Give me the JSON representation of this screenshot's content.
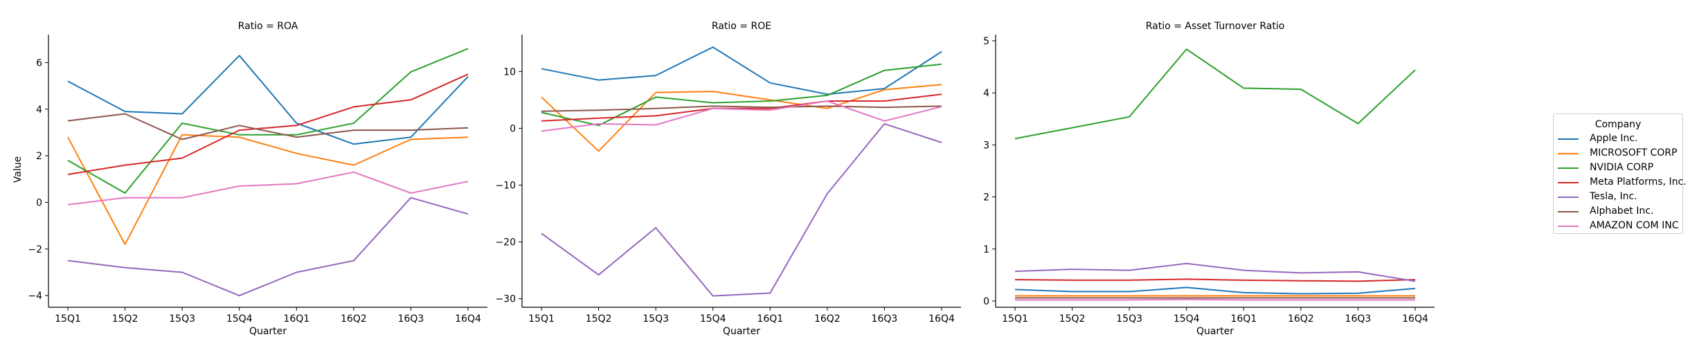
{
  "chart_data": [
    {
      "type": "line",
      "title": "Ratio = ROA",
      "xlabel": "Quarter",
      "ylabel": "Value",
      "categories": [
        "15Q1",
        "15Q2",
        "15Q3",
        "15Q4",
        "16Q1",
        "16Q2",
        "16Q3",
        "16Q4"
      ],
      "ylim": [
        -4.5,
        7.2
      ],
      "yticks": [
        -4,
        -2,
        0,
        2,
        4,
        6
      ],
      "ytick_labels": [
        "−4",
        "−2",
        "0",
        "2",
        "4",
        "6"
      ],
      "series": [
        {
          "name": "Apple Inc.",
          "values": [
            5.2,
            3.9,
            3.8,
            6.3,
            3.4,
            2.5,
            2.8,
            5.4
          ]
        },
        {
          "name": "MICROSOFT CORP",
          "values": [
            2.8,
            -1.8,
            2.9,
            2.8,
            2.1,
            1.6,
            2.7,
            2.8
          ]
        },
        {
          "name": "NVIDIA CORP",
          "values": [
            1.8,
            0.4,
            3.4,
            2.9,
            2.9,
            3.4,
            5.6,
            6.6
          ]
        },
        {
          "name": "Meta Platforms, Inc.",
          "values": [
            1.2,
            1.6,
            1.9,
            3.1,
            3.3,
            4.1,
            4.4,
            5.5
          ]
        },
        {
          "name": "Tesla, Inc.",
          "values": [
            -2.5,
            -2.8,
            -3.0,
            -4.0,
            -3.0,
            -2.5,
            0.2,
            -0.5
          ]
        },
        {
          "name": "Alphabet Inc.",
          "values": [
            3.5,
            3.8,
            2.7,
            3.3,
            2.8,
            3.1,
            3.1,
            3.2
          ]
        },
        {
          "name": "AMAZON COM INC",
          "values": [
            -0.1,
            0.2,
            0.2,
            0.7,
            0.8,
            1.3,
            0.4,
            0.9
          ]
        }
      ]
    },
    {
      "type": "line",
      "title": "Ratio = ROE",
      "xlabel": "Quarter",
      "ylabel": "",
      "categories": [
        "15Q1",
        "15Q2",
        "15Q3",
        "15Q4",
        "16Q1",
        "16Q2",
        "16Q3",
        "16Q4"
      ],
      "ylim": [
        -31.5,
        16.5
      ],
      "yticks": [
        -30,
        -20,
        -10,
        0,
        10
      ],
      "ytick_labels": [
        "−30",
        "−20",
        "−10",
        "0",
        "10"
      ],
      "series": [
        {
          "name": "Apple Inc.",
          "values": [
            10.5,
            8.5,
            9.3,
            14.3,
            8.0,
            6.0,
            7.0,
            13.5
          ]
        },
        {
          "name": "MICROSOFT CORP",
          "values": [
            5.5,
            -4.0,
            6.3,
            6.5,
            5.0,
            3.5,
            6.8,
            7.7
          ]
        },
        {
          "name": "NVIDIA CORP",
          "values": [
            2.8,
            0.5,
            5.5,
            4.5,
            4.8,
            5.8,
            10.2,
            11.3
          ]
        },
        {
          "name": "Meta Platforms, Inc.",
          "values": [
            1.3,
            1.8,
            2.2,
            3.5,
            3.5,
            4.8,
            4.8,
            6.0
          ]
        },
        {
          "name": "Tesla, Inc.",
          "values": [
            -18.5,
            -25.8,
            -17.5,
            -29.5,
            -29.0,
            -11.5,
            0.8,
            -2.5
          ]
        },
        {
          "name": "Alphabet Inc.",
          "values": [
            3.0,
            3.2,
            3.5,
            3.9,
            3.7,
            3.9,
            3.7,
            3.9
          ]
        },
        {
          "name": "AMAZON COM INC",
          "values": [
            -0.5,
            0.8,
            0.6,
            3.5,
            3.2,
            4.8,
            1.3,
            3.8
          ]
        }
      ]
    },
    {
      "type": "line",
      "title": "Ratio = Asset Turnover Ratio",
      "xlabel": "Quarter",
      "ylabel": "",
      "categories": [
        "15Q1",
        "15Q2",
        "15Q3",
        "15Q4",
        "16Q1",
        "16Q2",
        "16Q3",
        "16Q4"
      ],
      "ylim": [
        -0.12,
        5.12
      ],
      "yticks": [
        0,
        1,
        2,
        3,
        4,
        5
      ],
      "ytick_labels": [
        "0",
        "1",
        "2",
        "3",
        "4",
        "5"
      ],
      "series": [
        {
          "name": "Apple Inc.",
          "values": [
            0.22,
            0.18,
            0.18,
            0.26,
            0.16,
            0.14,
            0.15,
            0.24
          ]
        },
        {
          "name": "MICROSOFT CORP",
          "values": [
            0.1,
            0.1,
            0.1,
            0.1,
            0.1,
            0.1,
            0.1,
            0.1
          ]
        },
        {
          "name": "NVIDIA CORP",
          "values": [
            3.12,
            3.33,
            3.54,
            4.84,
            4.09,
            4.07,
            3.41,
            4.44
          ]
        },
        {
          "name": "Meta Platforms, Inc.",
          "values": [
            0.41,
            0.4,
            0.4,
            0.42,
            0.4,
            0.39,
            0.38,
            0.41
          ]
        },
        {
          "name": "Tesla, Inc.",
          "values": [
            0.57,
            0.61,
            0.59,
            0.72,
            0.59,
            0.54,
            0.56,
            0.38
          ]
        },
        {
          "name": "Alphabet Inc.",
          "values": [
            0.06,
            0.06,
            0.06,
            0.06,
            0.06,
            0.06,
            0.06,
            0.06
          ]
        },
        {
          "name": "AMAZON COM INC",
          "values": [
            0.02,
            0.02,
            0.02,
            0.03,
            0.02,
            0.02,
            0.02,
            0.02
          ]
        }
      ]
    }
  ],
  "legend": {
    "title": "Company",
    "placement": "right",
    "items": [
      {
        "name": "Apple Inc.",
        "color": "#1f77b4"
      },
      {
        "name": "MICROSOFT CORP",
        "color": "#ff7f0e"
      },
      {
        "name": "NVIDIA CORP",
        "color": "#2ca02c"
      },
      {
        "name": "Meta Platforms, Inc.",
        "color": "#d62728"
      },
      {
        "name": "Tesla, Inc.",
        "color": "#9467bd"
      },
      {
        "name": "Alphabet Inc.",
        "color": "#8c564b"
      },
      {
        "name": "AMAZON COM INC",
        "color": "#e377c2"
      }
    ]
  }
}
